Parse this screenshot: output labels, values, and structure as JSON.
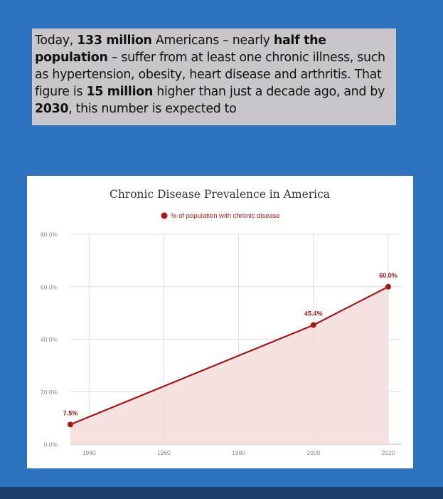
{
  "quote": {
    "parts": [
      {
        "text": "Today, ",
        "bold": false
      },
      {
        "text": "133 million",
        "bold": true
      },
      {
        "text": " Americans – nearly ",
        "bold": false
      },
      {
        "text": "half the population",
        "bold": true
      },
      {
        "text": " – suffer from at least one chronic illness, such as hypertension, obesity, heart disease and arthritis. That figure is ",
        "bold": false
      },
      {
        "text": "15 million",
        "bold": true
      },
      {
        "text": " higher than just a decade ago, and by ",
        "bold": false
      },
      {
        "text": "2030",
        "bold": true
      },
      {
        "text": ", this number is expected to",
        "bold": false
      }
    ]
  },
  "colors": {
    "background": "#2e73bf",
    "quote_box": "#c9c6cb",
    "series_line": "#a81616",
    "series_fill": "#f5dede",
    "grid": "#dcdcdc",
    "tick_label": "#8a8a8a"
  },
  "chart_data": {
    "type": "area",
    "title": "Chronic Disease Prevalence in America",
    "legend": {
      "placement": "top",
      "entries": [
        "% of population with chronic disease"
      ]
    },
    "xlabel": "",
    "ylabel": "",
    "xlim": [
      1935,
      2020
    ],
    "ylim": [
      0,
      80
    ],
    "x_ticks": [
      1940,
      1960,
      1980,
      2000,
      2020
    ],
    "y_ticks": [
      {
        "value": 0,
        "label": "0.0%"
      },
      {
        "value": 20,
        "label": "20.0%"
      },
      {
        "value": 40,
        "label": "40.0%"
      },
      {
        "value": 60,
        "label": "60.0%"
      },
      {
        "value": 80,
        "label": "80.0%"
      }
    ],
    "grid": true,
    "series": [
      {
        "name": "% of population with chronic disease",
        "points": [
          {
            "x": 1935,
            "y": 7.5,
            "label": "7.5%"
          },
          {
            "x": 2000,
            "y": 45.4,
            "label": "45.4%"
          },
          {
            "x": 2020,
            "y": 60.0,
            "label": "60.0%"
          }
        ]
      }
    ]
  }
}
